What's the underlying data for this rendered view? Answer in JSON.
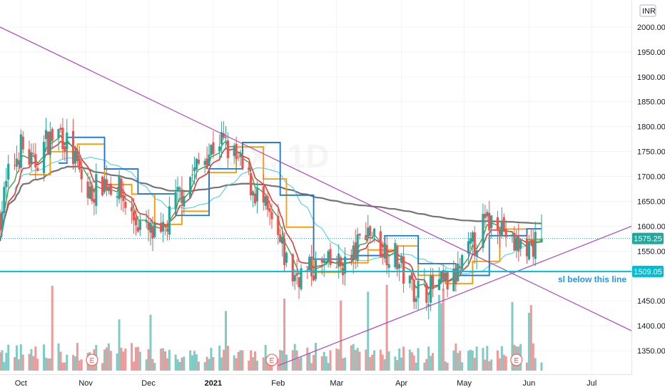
{
  "chart_data": {
    "type": "candlestick",
    "title": "",
    "timeframe": "1D",
    "currency_badge": "INR",
    "y_range": [
      1320,
      2030
    ],
    "y_ticks": [
      "2000.00",
      "1950.00",
      "1900.00",
      "1850.00",
      "1800.00",
      "1750.00",
      "1700.00",
      "1650.00",
      "1600.00",
      "1550.00",
      "1450.00",
      "1400.00",
      "1350.00"
    ],
    "x_ticks": [
      {
        "label": "Oct",
        "date": "2020-10-01",
        "bold": false
      },
      {
        "label": "Nov",
        "date": "2020-11-01",
        "bold": false
      },
      {
        "label": "Dec",
        "date": "2020-12-01",
        "bold": false
      },
      {
        "label": "2021",
        "date": "2021-01-01",
        "bold": true
      },
      {
        "label": "Feb",
        "date": "2021-02-01",
        "bold": false
      },
      {
        "label": "Mar",
        "date": "2021-03-01",
        "bold": false
      },
      {
        "label": "Apr",
        "date": "2021-04-01",
        "bold": false
      },
      {
        "label": "May",
        "date": "2021-05-01",
        "bold": false
      },
      {
        "label": "Jun",
        "date": "2021-06-01",
        "bold": false
      },
      {
        "label": "Jul",
        "date": "2021-07-01",
        "bold": false
      }
    ],
    "x_range": [
      "2020-09-21",
      "2021-07-20"
    ],
    "price_path": [
      [
        "2020-09-21",
        1620
      ],
      [
        "2020-09-25",
        1700
      ],
      [
        "2020-10-01",
        1760
      ],
      [
        "2020-10-07",
        1720
      ],
      [
        "2020-10-13",
        1770
      ],
      [
        "2020-10-20",
        1790
      ],
      [
        "2020-10-26",
        1740
      ],
      [
        "2020-11-02",
        1660
      ],
      [
        "2020-11-09",
        1690
      ],
      [
        "2020-11-16",
        1680
      ],
      [
        "2020-11-23",
        1620
      ],
      [
        "2020-11-30",
        1590
      ],
      [
        "2020-12-07",
        1570
      ],
      [
        "2020-12-14",
        1650
      ],
      [
        "2020-12-21",
        1700
      ],
      [
        "2020-12-28",
        1740
      ],
      [
        "2021-01-04",
        1775
      ],
      [
        "2021-01-11",
        1740
      ],
      [
        "2021-01-18",
        1690
      ],
      [
        "2021-01-25",
        1640
      ],
      [
        "2021-02-01",
        1570
      ],
      [
        "2021-02-08",
        1500
      ],
      [
        "2021-02-15",
        1510
      ],
      [
        "2021-02-22",
        1520
      ],
      [
        "2021-03-01",
        1520
      ],
      [
        "2021-03-08",
        1530
      ],
      [
        "2021-03-15",
        1600
      ],
      [
        "2021-03-22",
        1560
      ],
      [
        "2021-03-29",
        1540
      ],
      [
        "2021-04-05",
        1480
      ],
      [
        "2021-04-12",
        1470
      ],
      [
        "2021-04-19",
        1480
      ],
      [
        "2021-04-26",
        1490
      ],
      [
        "2021-05-03",
        1545
      ],
      [
        "2021-05-10",
        1600
      ],
      [
        "2021-05-17",
        1620
      ],
      [
        "2021-05-24",
        1560
      ],
      [
        "2021-06-01",
        1560
      ],
      [
        "2021-06-07",
        1575
      ]
    ],
    "last_price": "1575.25",
    "last_price_color": "#26a69a",
    "support_level": "1509.05",
    "support_color": "#00bcd4",
    "annotation": "sl below this line",
    "trendlines": [
      {
        "name": "descending",
        "color": "#ab47bc",
        "points": [
          [
            "2020-09-21",
            2000
          ],
          [
            "2021-07-20",
            1390
          ]
        ]
      },
      {
        "name": "ascending",
        "color": "#ab47bc",
        "points": [
          [
            "2021-02-01",
            1320
          ],
          [
            "2021-07-20",
            1600
          ]
        ]
      }
    ],
    "series": [
      {
        "style": "ema-green",
        "color": "#43a047"
      },
      {
        "style": "ema-red",
        "color": "#e53935"
      },
      {
        "style": "ma-cyan",
        "color": "#4dd0e1"
      },
      {
        "style": "ma-gray",
        "color": "#757575"
      },
      {
        "style": "step-blue",
        "color": "#1976d2"
      },
      {
        "style": "step-orange",
        "color": "#ff9800"
      }
    ],
    "earnings_markers": [
      {
        "label": "E",
        "date": "2020-11-04"
      },
      {
        "label": "E",
        "date": "2021-01-29"
      },
      {
        "label": "E",
        "date": "2021-05-26"
      }
    ],
    "candle_up_color": "#26a69a",
    "candle_down_color": "#ef5350",
    "volume_up_color": "#80cbc4",
    "volume_down_color": "#ef9a9a",
    "watermark_text": "ACX, 1D",
    "grid": true
  }
}
